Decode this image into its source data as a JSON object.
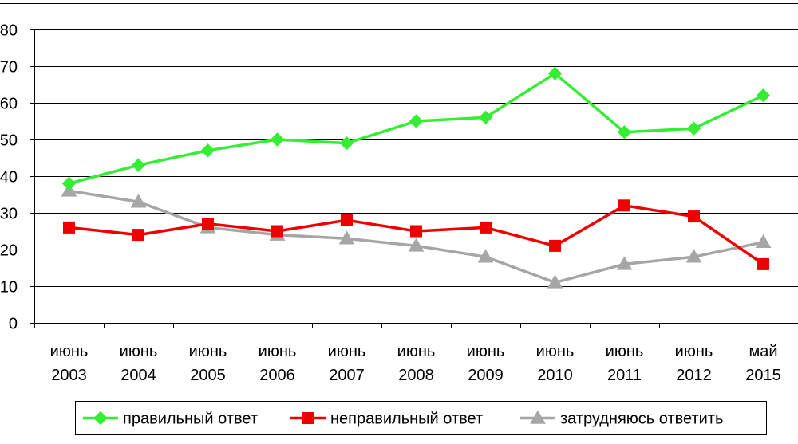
{
  "chart_data": {
    "type": "line",
    "categories": [
      [
        "июнь",
        "2003"
      ],
      [
        "июнь",
        "2004"
      ],
      [
        "июнь",
        "2005"
      ],
      [
        "июнь",
        "2006"
      ],
      [
        "июнь",
        "2007"
      ],
      [
        "июнь",
        "2008"
      ],
      [
        "июнь",
        "2009"
      ],
      [
        "июнь",
        "2010"
      ],
      [
        "июнь",
        "2011"
      ],
      [
        "июнь",
        "2012"
      ],
      [
        "май",
        "2015"
      ]
    ],
    "ylim": [
      0,
      80
    ],
    "yticks": [
      0,
      10,
      20,
      30,
      40,
      50,
      60,
      70,
      80
    ],
    "ytick_labels": [
      "0",
      "10",
      "20",
      "30",
      "40",
      "50",
      "60",
      "70",
      "80"
    ],
    "grid": true,
    "legend_position": "bottom",
    "series": [
      {
        "name": "правильный ответ",
        "values": [
          38,
          43,
          47,
          50,
          49,
          55,
          56,
          68,
          52,
          53,
          62
        ],
        "color": "#33ee33",
        "marker": "diamond"
      },
      {
        "name": "неправильный ответ",
        "values": [
          26,
          24,
          27,
          25,
          28,
          25,
          26,
          21,
          32,
          29,
          16
        ],
        "color": "#ee0000",
        "marker": "square"
      },
      {
        "name": "затрудняюсь ответить",
        "values": [
          36,
          33,
          26,
          24,
          23,
          21,
          18,
          11,
          16,
          18,
          22
        ],
        "color": "#a6a6a6",
        "marker": "triangle"
      }
    ]
  }
}
